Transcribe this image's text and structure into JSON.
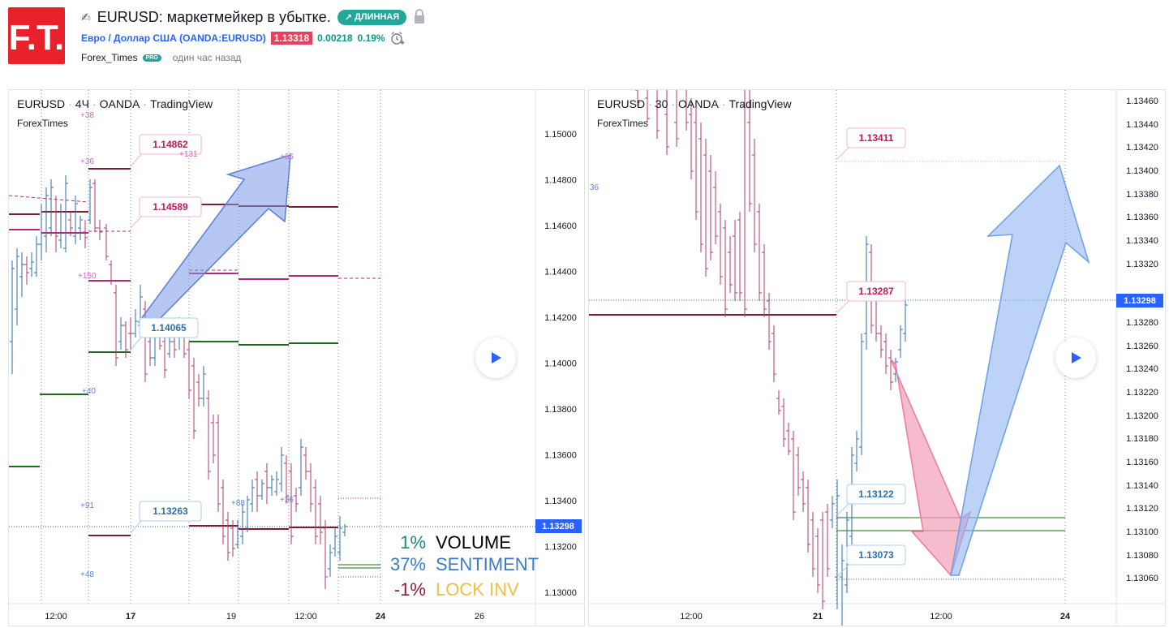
{
  "header": {
    "title": "EURUSD: маркетмейкер в убытке.",
    "direction_badge": "ДЛИННАЯ",
    "symbol_link": "Евро / Доллар США (OANDA:EURUSD)",
    "price": "1.13318",
    "change_abs": "0.00218",
    "change_pct": "0.19%",
    "author": "Forex_Times",
    "author_badge": "PRO",
    "time_ago": "один час назад",
    "logo_text": "F.T.",
    "icons": [
      "pencil-icon",
      "arrow-up-right-icon",
      "lock-icon",
      "alarm-clock-plus-icon"
    ]
  },
  "left_chart": {
    "legend": {
      "symbol": "EURUSD",
      "interval": "4Ч",
      "broker": "OANDA",
      "platform": "TradingView"
    },
    "sublegend": "ForexTimes",
    "price_ticks": [
      "1.15000",
      "1.14800",
      "1.14600",
      "1.14400",
      "1.14200",
      "1.14000",
      "1.13800",
      "1.13600",
      "1.13400",
      "1.13200",
      "1.13000"
    ],
    "current_price_label": "1.13298",
    "time_ticks": [
      "12:00",
      "17",
      "19",
      "12:00",
      "24",
      "26"
    ],
    "callouts": [
      "1.14862",
      "1.14589",
      "1.14065",
      "1.13263"
    ],
    "small_numbers": [
      "+38",
      "+36",
      "+131",
      "+65",
      "+150",
      "+40",
      "+91",
      "+88",
      "+36",
      "+48"
    ],
    "stats": [
      {
        "value": "1%",
        "label": "VOLUME",
        "value_color": "#1b8a7a",
        "label_color": "#000000"
      },
      {
        "value": "37%",
        "label": "SENTIMENT",
        "value_color": "#3d7bc4",
        "label_color": "#3d7bc4"
      },
      {
        "value": "-1%",
        "label": "LOCK INV",
        "value_color": "#8a1c3a",
        "label_color": "#f0c040"
      }
    ]
  },
  "right_chart": {
    "legend": {
      "symbol": "EURUSD",
      "interval": "30",
      "broker": "OANDA",
      "platform": "TradingView"
    },
    "sublegend": "ForexTimes",
    "price_ticks": [
      "1.13460",
      "1.13440",
      "1.13420",
      "1.13400",
      "1.13380",
      "1.13360",
      "1.13340",
      "1.13320",
      "1.13280",
      "1.13260",
      "1.13240",
      "1.13220",
      "1.13200",
      "1.13180",
      "1.13160",
      "1.13140",
      "1.13120",
      "1.13100",
      "1.13080",
      "1.13060"
    ],
    "current_price_label": "1.13298",
    "time_ticks": [
      "12:00",
      "21",
      "12:00",
      "24"
    ],
    "callouts": [
      "1.13411",
      "1.13287",
      "1.13122",
      "1.13073"
    ],
    "small_numbers": [
      "36"
    ]
  },
  "colors": {
    "brand_red": "#e8212a",
    "bull": "#2e6fa8",
    "bear": "#b03a6a",
    "accent_blue": "#2962ff",
    "green": "#26a69a",
    "price_badge": "#e9405f"
  }
}
